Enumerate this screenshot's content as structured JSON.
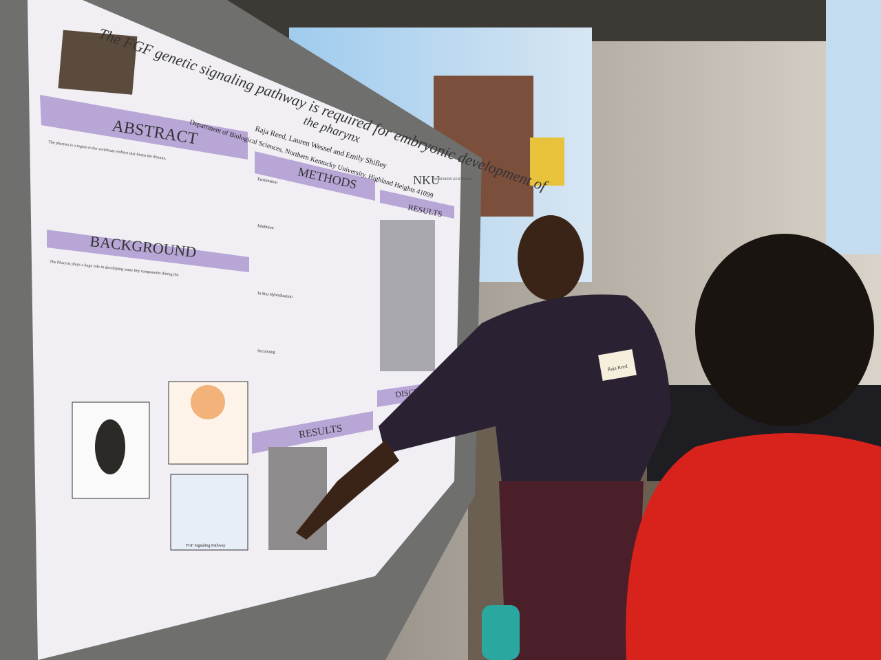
{
  "poster": {
    "title_line1": "The FGF genetic signaling pathway is required for embryonic development of",
    "title_line2": "the pharynx",
    "authors": "Raja Reed, Lauren Wessel and Emily Shifley",
    "affiliation": "Department of Biological Sciences, Northern Kentucky University, Highland Heights 41099",
    "logo": "NKU",
    "logo_text": "NORTHERN KENTUCKY",
    "sections": {
      "abstract": "ABSTRACT",
      "background": "BACKGROUND",
      "methods": "METHODS",
      "results_top": "RESULTS",
      "results_bottom": "RESULTS",
      "discussion": "DISCUSSION"
    },
    "abstract_text": "The pharynx is a region in the vertebrate embryo that forms the thymus,",
    "background_text": "The Pharynx plays a huge role in developing some key components during the",
    "methods_sub": [
      "Fertilization",
      "Inhibition",
      "In Situ Hybridization",
      "Sectioning"
    ],
    "figure_caption": "FGF Signaling Pathway"
  },
  "name_badge": "Raja Reed",
  "colors": {
    "poster_band": "#b7a6d6",
    "presenter_shirt": "#2a2233",
    "presenter_pants": "#4a1f2a",
    "visitor_sweater": "#d8221c",
    "projector_screen": "#bcd7ee"
  }
}
